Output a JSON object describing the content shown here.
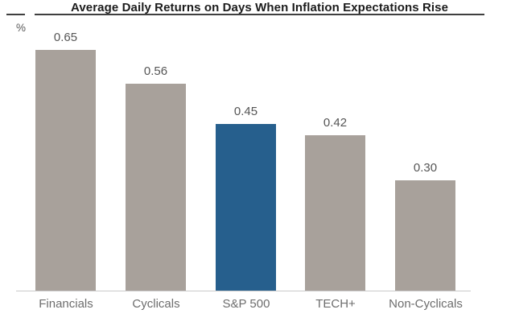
{
  "chart_data": {
    "type": "bar",
    "title": "Average Daily Returns on Days When Inflation Expectations Rise",
    "unit_label": "%",
    "categories": [
      "Financials",
      "Cyclicals",
      "S&P 500",
      "TECH+",
      "Non-Cyclicals"
    ],
    "values": [
      0.65,
      0.56,
      0.45,
      0.42,
      0.3
    ],
    "value_labels": [
      "0.65",
      "0.56",
      "0.45",
      "0.42",
      "0.30"
    ],
    "xlabel": "",
    "ylabel": "%",
    "ylim": [
      0,
      0.78
    ],
    "grid": false,
    "legend": null,
    "highlighted_category": "S&P 500",
    "colors": {
      "bar_default": "#a8a19b",
      "bar_highlight": "#265f8d",
      "title_text": "#1c1c1c",
      "title_rule": "#3f3f3f",
      "value_text": "#555555",
      "category_text": "#6d6d6d",
      "baseline": "#c9c9c9",
      "background": "#ffffff"
    }
  }
}
